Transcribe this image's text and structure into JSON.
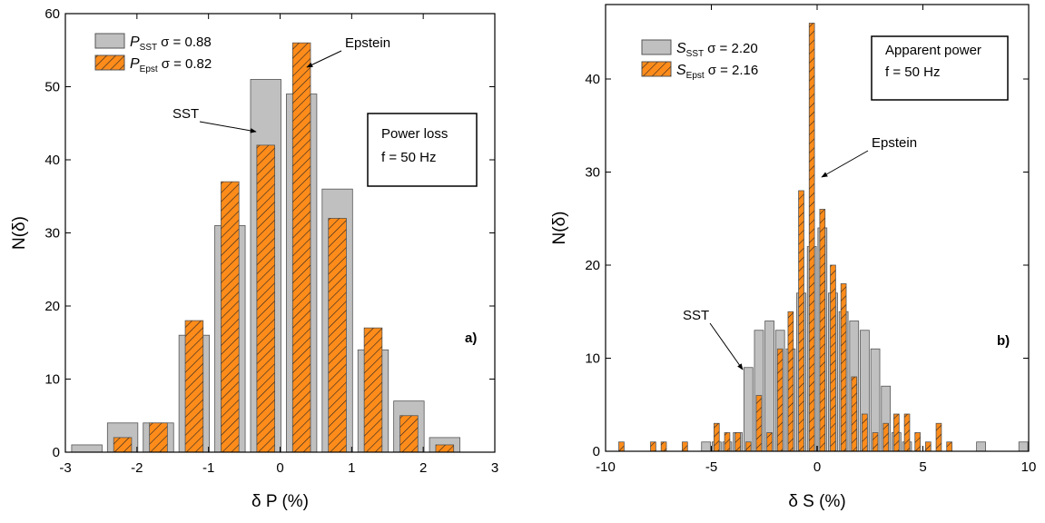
{
  "chart_data": [
    {
      "type": "histogram",
      "bins": [
        -2.95,
        -2.45,
        -1.95,
        -1.45,
        -0.95,
        -0.45,
        0.05,
        0.55,
        1.05,
        1.55,
        2.05,
        2.55
      ],
      "series": [
        {
          "name": "P",
          "subscript": "SST",
          "label": "σ = 0.88",
          "color": "#c0c0c0",
          "values": [
            1,
            4,
            4,
            16,
            31,
            51,
            49,
            36,
            14,
            7,
            2
          ]
        },
        {
          "name": "P",
          "subscript": "Epst",
          "label": "σ = 0.82",
          "color": "#ff8c1a",
          "hatch": true,
          "values": [
            0,
            2,
            4,
            18,
            37,
            42,
            56,
            32,
            17,
            5,
            1
          ]
        }
      ],
      "xlabel": "δ P (%)",
      "ylabel": "N(δ)",
      "xlim": [
        -3,
        3
      ],
      "xticks": [
        -3,
        -2,
        -1,
        0,
        1,
        2,
        3
      ],
      "ylim": [
        0,
        60
      ],
      "yticks": [
        0,
        10,
        20,
        30,
        40,
        50,
        60
      ],
      "annotations": [
        "Epstein",
        "SST",
        "Power loss",
        "f = 50 Hz",
        "a)"
      ]
    },
    {
      "type": "histogram",
      "bins": [
        -9.5,
        -9,
        -8.5,
        -8,
        -7.5,
        -7,
        -6.5,
        -6,
        -5.5,
        -5,
        -4.5,
        -4,
        -3.5,
        -3,
        -2.5,
        -2,
        -1.5,
        -1,
        -0.5,
        0,
        0.5,
        1,
        1.5,
        2,
        2.5,
        3,
        3.5,
        4,
        4.5,
        5,
        5.5,
        6,
        6.5,
        7,
        7.5,
        8,
        8.5,
        9,
        9.5,
        10
      ],
      "series": [
        {
          "name": "S",
          "subscript": "SST",
          "label": "σ = 2.20",
          "color": "#c0c0c0",
          "values": [
            0,
            0,
            0,
            0,
            0,
            0,
            0,
            0,
            1,
            1,
            1,
            2,
            9,
            13,
            14,
            13,
            11,
            17,
            22,
            24,
            17,
            15,
            14,
            13,
            11,
            7,
            2,
            1,
            0,
            0,
            0,
            0,
            0,
            0,
            1,
            0,
            0,
            0,
            1
          ]
        },
        {
          "name": "S",
          "subscript": "Epst",
          "label": "σ = 2.16",
          "color": "#ff8c1a",
          "hatch": true,
          "values": [
            1,
            0,
            0,
            1,
            1,
            0,
            1,
            0,
            0,
            3,
            2,
            2,
            1,
            6,
            2,
            11,
            15,
            28,
            46,
            26,
            20,
            18,
            8,
            4,
            2,
            3,
            4,
            4,
            2,
            1,
            3,
            1,
            0,
            0,
            0,
            0,
            0,
            0,
            0
          ]
        }
      ],
      "xlabel": "δ S (%)",
      "ylabel": "N(δ)",
      "xlim": [
        -10,
        10
      ],
      "xticks": [
        -10,
        -5,
        0,
        5,
        10
      ],
      "ylim": [
        0,
        48
      ],
      "yticks": [
        0,
        10,
        20,
        30,
        40
      ],
      "annotations": [
        "Epstein",
        "SST",
        "Apparent power",
        "f = 50 Hz",
        "b)"
      ]
    }
  ]
}
